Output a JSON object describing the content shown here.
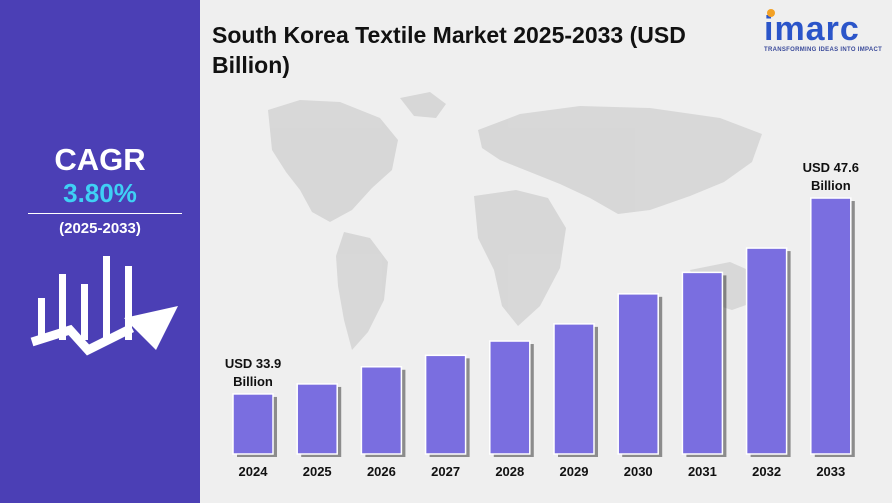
{
  "chart_data": {
    "type": "bar",
    "title": "South Korea Textile Market 2025-2033 (USD Billion)",
    "categories": [
      "2024",
      "2025",
      "2026",
      "2027",
      "2028",
      "2029",
      "2030",
      "2031",
      "2032",
      "2033"
    ],
    "values": [
      33.9,
      34.6,
      35.8,
      36.6,
      37.6,
      38.8,
      40.9,
      42.4,
      44.1,
      47.6
    ],
    "data_labels": [
      {
        "category": "2024",
        "line1": "USD 33.9",
        "line2": "Billion"
      },
      {
        "category": "2033",
        "line1": "USD 47.6",
        "line2": "Billion"
      }
    ],
    "ylim": [
      29.7,
      49.0
    ],
    "grid": false,
    "bar_color": "#7a6ee0"
  },
  "cagr": {
    "label": "CAGR",
    "value": "3.80%",
    "period": "(2025-2033)"
  },
  "logo": {
    "word": "imarc",
    "tagline": "TRANSFORMING IDEAS INTO IMPACT",
    "color": "#2b55c9"
  },
  "colors": {
    "panel": "#4b3fb5",
    "accent": "#3fd0f5"
  }
}
